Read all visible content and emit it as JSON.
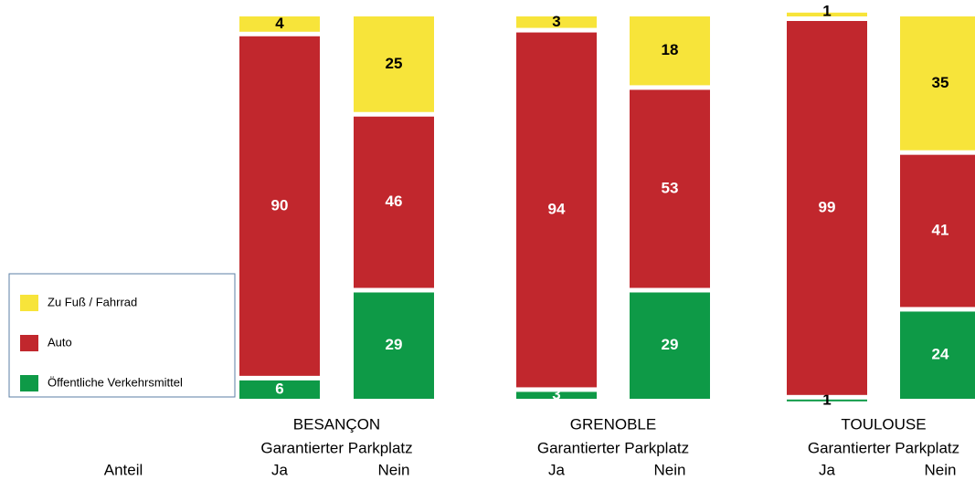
{
  "chart_data": {
    "type": "bar",
    "stacked": true,
    "groups": [
      "BESANÇON",
      "GRENOBLE",
      "TOULOUSE"
    ],
    "group_label": "Garantierter Parkplatz",
    "row_label": "Anteil",
    "categories": [
      "Ja",
      "Nein",
      "Ja",
      "Nein",
      "Ja",
      "Nein"
    ],
    "series": [
      {
        "name": "Öffentliche Verkehrsmittel",
        "color": "#0e9a47",
        "label_color": "#ffffff",
        "values": [
          6,
          29,
          3,
          29,
          1,
          24
        ]
      },
      {
        "name": "Auto",
        "color": "#c1272d",
        "label_color": "#ffffff",
        "values": [
          90,
          46,
          94,
          53,
          99,
          41
        ]
      },
      {
        "name": "Zu Fuß / Fahrrad",
        "color": "#f7e43a",
        "label_color": "#000000",
        "values": [
          4,
          25,
          3,
          18,
          1,
          35
        ]
      }
    ]
  }
}
